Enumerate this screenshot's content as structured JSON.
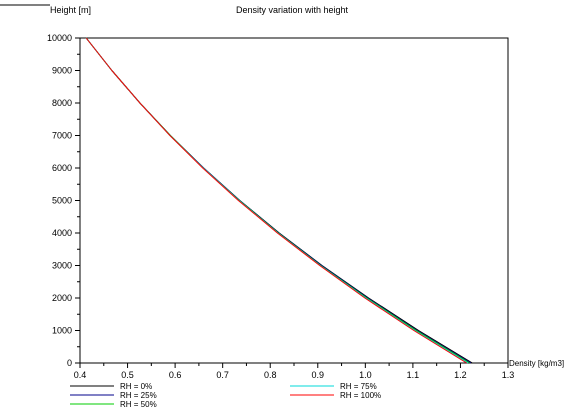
{
  "chart_data": {
    "type": "line",
    "title": "Density variation with height",
    "xlabel": "Density [kg/m3]",
    "ylabel": "Height [m]",
    "xlim": [
      0.4,
      1.3
    ],
    "ylim": [
      0,
      10000
    ],
    "xticks": [
      "0.4",
      "0.5",
      "0.6",
      "0.7",
      "0.8",
      "0.9",
      "1.0",
      "1.1",
      "1.2",
      "1.3"
    ],
    "yticks": [
      "0",
      "1000",
      "2000",
      "3000",
      "4000",
      "5000",
      "6000",
      "7000",
      "8000",
      "9000",
      "10000"
    ],
    "grid": false,
    "legend_position": "bottom",
    "series": [
      {
        "name": "RH = 0%",
        "color": "#000000",
        "x": [
          1.225,
          1.112,
          1.007,
          0.909,
          0.819,
          0.736,
          0.66,
          0.59,
          0.526,
          0.467,
          0.413
        ],
        "y": [
          0,
          1000,
          2000,
          3000,
          4000,
          5000,
          6000,
          7000,
          8000,
          9000,
          10000
        ]
      },
      {
        "name": "RH = 25%",
        "color": "#00008b",
        "x": [
          1.222,
          1.109,
          1.005,
          0.908,
          0.818,
          0.736,
          0.66,
          0.59,
          0.526,
          0.467,
          0.413
        ],
        "y": [
          0,
          1000,
          2000,
          3000,
          4000,
          5000,
          6000,
          7000,
          8000,
          9000,
          10000
        ]
      },
      {
        "name": "RH = 50%",
        "color": "#00cc00",
        "x": [
          1.219,
          1.107,
          1.003,
          0.906,
          0.817,
          0.735,
          0.659,
          0.59,
          0.526,
          0.467,
          0.413
        ],
        "y": [
          0,
          1000,
          2000,
          3000,
          4000,
          5000,
          6000,
          7000,
          8000,
          9000,
          10000
        ]
      },
      {
        "name": "RH = 75%",
        "color": "#00d8d8",
        "x": [
          1.216,
          1.104,
          1.001,
          0.905,
          0.816,
          0.734,
          0.659,
          0.589,
          0.526,
          0.467,
          0.413
        ],
        "y": [
          0,
          1000,
          2000,
          3000,
          4000,
          5000,
          6000,
          7000,
          8000,
          9000,
          10000
        ]
      },
      {
        "name": "RH = 100%",
        "color": "#ff0000",
        "x": [
          1.213,
          1.102,
          0.999,
          0.904,
          0.815,
          0.733,
          0.658,
          0.589,
          0.526,
          0.467,
          0.413
        ],
        "y": [
          0,
          1000,
          2000,
          3000,
          4000,
          5000,
          6000,
          7000,
          8000,
          9000,
          10000
        ]
      }
    ]
  }
}
